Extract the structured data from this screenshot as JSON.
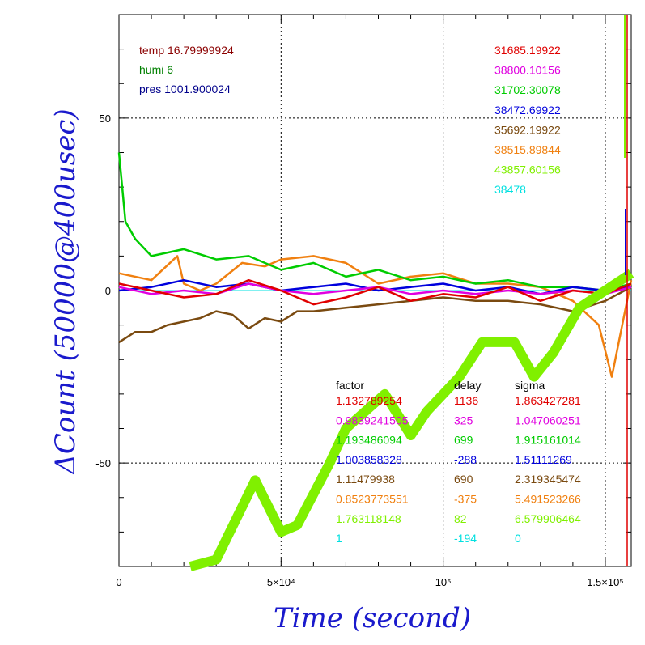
{
  "chart_data": {
    "type": "line",
    "xlabel": "Time (second)",
    "ylabel": "ΔCount (50000@400usec)",
    "xlim": [
      0,
      158000
    ],
    "ylim": [
      -80,
      80
    ],
    "x_ticks": [
      {
        "value": 0,
        "label": "0"
      },
      {
        "value": 50000,
        "label": "5×10⁴"
      },
      {
        "value": 100000,
        "label": "10⁵"
      },
      {
        "value": 150000,
        "label": "1.5×10⁵"
      }
    ],
    "y_ticks": [
      {
        "value": 50,
        "label": "50"
      },
      {
        "value": 0,
        "label": "0"
      },
      {
        "value": -50,
        "label": "-50"
      }
    ],
    "grid": true,
    "env": [
      {
        "text": "temp 16.79999924",
        "color": "#8b0000"
      },
      {
        "text": "humi 6",
        "color": "#008000"
      },
      {
        "text": "pres 1001.900024",
        "color": "#00008b"
      }
    ],
    "legend_headers": {
      "factor": "factor",
      "delay": "delay",
      "sigma": "sigma"
    },
    "series": [
      {
        "name": "31685.19922",
        "factor": "1.132789254",
        "delay": "1136",
        "sigma": "1.863427281",
        "color": "#e00000",
        "x": [
          0,
          10000,
          20000,
          30000,
          40000,
          50000,
          60000,
          70000,
          80000,
          90000,
          100000,
          110000,
          120000,
          130000,
          140000,
          150000,
          158000
        ],
        "y": [
          2,
          0,
          -2,
          -1,
          3,
          0,
          -4,
          -2,
          1,
          -3,
          -1,
          -2,
          1,
          -3,
          0,
          -1,
          2
        ]
      },
      {
        "name": "38800.10156",
        "factor": "0.9839241505",
        "delay": "325",
        "sigma": "1.047060251",
        "color": "#e000e0",
        "x": [
          0,
          10000,
          20000,
          30000,
          40000,
          50000,
          60000,
          70000,
          80000,
          90000,
          100000,
          110000,
          120000,
          130000,
          140000,
          150000,
          158000
        ],
        "y": [
          1,
          -1,
          0,
          -1,
          2,
          0,
          -1,
          0,
          1,
          -1,
          0,
          -1,
          0,
          -1,
          0,
          -1,
          1
        ]
      },
      {
        "name": "31702.30078",
        "factor": "1.193486094",
        "delay": "699",
        "sigma": "1.915161014",
        "color": "#00cc00",
        "x": [
          0,
          2000,
          5000,
          10000,
          20000,
          30000,
          40000,
          50000,
          60000,
          70000,
          80000,
          90000,
          100000,
          110000,
          120000,
          130000,
          140000,
          150000,
          158000
        ],
        "y": [
          40,
          20,
          15,
          10,
          12,
          9,
          10,
          6,
          8,
          4,
          6,
          3,
          4,
          2,
          3,
          1,
          1,
          0,
          2
        ]
      },
      {
        "name": "38472.69922",
        "factor": "1.003858328",
        "delay": "-288",
        "sigma": "1.51111269",
        "color": "#0000dd",
        "x": [
          0,
          10000,
          20000,
          30000,
          40000,
          50000,
          60000,
          70000,
          80000,
          90000,
          100000,
          110000,
          120000,
          130000,
          140000,
          150000,
          158000
        ],
        "y": [
          0,
          1,
          3,
          1,
          2,
          0,
          1,
          2,
          0,
          1,
          2,
          0,
          1,
          -1,
          1,
          0,
          1
        ]
      },
      {
        "name": "35692.19922",
        "factor": "1.11479938",
        "delay": "690",
        "sigma": "2.319345474",
        "color": "#7a4a10",
        "x": [
          0,
          5000,
          10000,
          15000,
          20000,
          25000,
          30000,
          35000,
          40000,
          45000,
          50000,
          55000,
          60000,
          70000,
          80000,
          90000,
          100000,
          110000,
          120000,
          130000,
          140000,
          150000,
          158000
        ],
        "y": [
          -15,
          -12,
          -12,
          -10,
          -9,
          -8,
          -6,
          -7,
          -11,
          -8,
          -9,
          -6,
          -6,
          -5,
          -4,
          -3,
          -2,
          -3,
          -3,
          -4,
          -6,
          -3,
          1
        ]
      },
      {
        "name": "38515.89844",
        "factor": "0.8523773551",
        "delay": "-375",
        "sigma": "5.491523266",
        "color": "#f08010",
        "x": [
          0,
          10000,
          18000,
          20000,
          25000,
          30000,
          38000,
          45000,
          50000,
          60000,
          70000,
          80000,
          90000,
          100000,
          110000,
          120000,
          130000,
          140000,
          148000,
          152000,
          158000
        ],
        "y": [
          5,
          3,
          10,
          2,
          0,
          2,
          8,
          7,
          9,
          10,
          8,
          2,
          4,
          5,
          2,
          2,
          1,
          -3,
          -10,
          -25,
          3
        ]
      },
      {
        "name": "43857.60156",
        "factor": "1.763118148",
        "delay": "82",
        "sigma": "6.579906464",
        "color": "#80f000",
        "x": [
          22000,
          30000,
          42000,
          50000,
          55000,
          65000,
          70000,
          82000,
          90000,
          95000,
          105000,
          112000,
          122000,
          128000,
          134000,
          142000,
          150000,
          158000
        ],
        "y": [
          -80,
          -78,
          -55,
          -70,
          -68,
          -50,
          -40,
          -30,
          -42,
          -35,
          -25,
          -15,
          -15,
          -25,
          -18,
          -5,
          0,
          5
        ]
      },
      {
        "name": "38478",
        "factor": "1",
        "delay": "-194",
        "sigma": "0",
        "color": "#00e0e0",
        "x": [
          0,
          158000
        ],
        "y": [
          0,
          0
        ]
      }
    ]
  }
}
